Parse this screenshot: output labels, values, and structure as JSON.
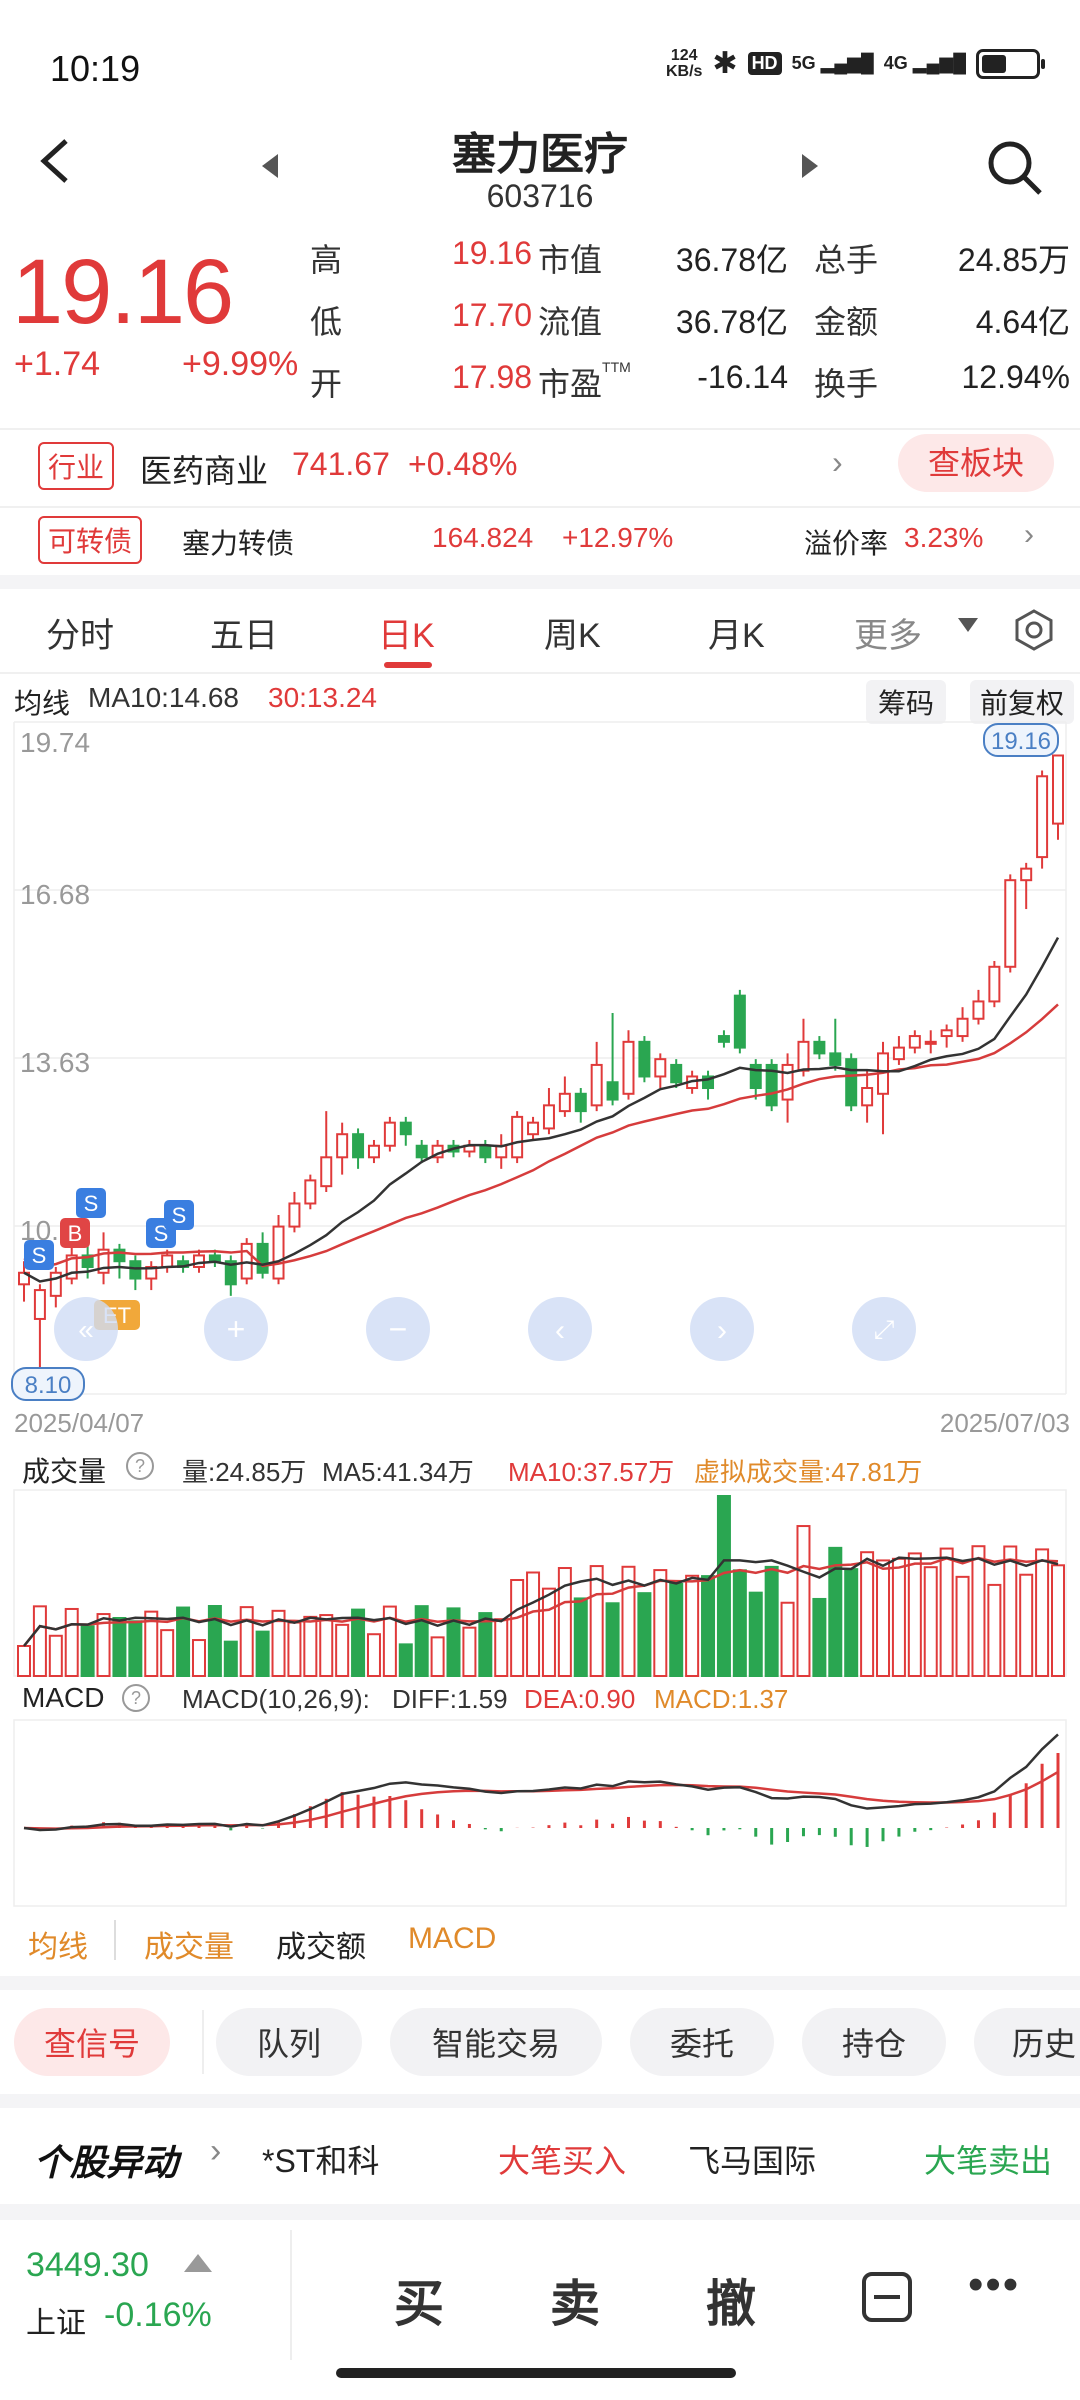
{
  "status": {
    "time": "10:19",
    "net_speed": "124\nKB/s",
    "hd": "HD",
    "sig1": "5G",
    "sig2": "4G"
  },
  "header": {
    "stock_name": "塞力医疗",
    "stock_code": "603716"
  },
  "quote": {
    "price": "19.16",
    "change": "+1.74",
    "change_pct": "+9.99%",
    "rows": [
      {
        "l1": "高",
        "v1": "19.16",
        "l2": "市值",
        "v2": "36.78亿",
        "l3": "总手",
        "v3": "24.85万"
      },
      {
        "l1": "低",
        "v1": "17.70",
        "l2": "流值",
        "v2": "36.78亿",
        "l3": "金额",
        "v3": "4.64亿"
      },
      {
        "l1": "开",
        "v1": "17.98",
        "l2": "市盈",
        "l2sup": "TTM",
        "v2": "-16.14",
        "l3": "换手",
        "v3": "12.94%"
      }
    ]
  },
  "industry": {
    "tag": "行业",
    "name": "医药商业",
    "value": "741.67",
    "change": "+0.48%",
    "button": "查板块"
  },
  "bond": {
    "tag": "可转债",
    "name": "塞力转债",
    "value": "164.824",
    "change": "+12.97%",
    "premium_label": "溢价率",
    "premium": "3.23%"
  },
  "tabs": [
    "分时",
    "五日",
    "日K",
    "周K",
    "月K",
    "更多"
  ],
  "kline": {
    "ma_label": "均线",
    "ma10": "MA10:14.68",
    "ma30": "30:13.24",
    "chips_btn": "筹码",
    "fq_btn": "前复权",
    "y_top": "19.74",
    "y_mid1": "16.68",
    "y_mid2": "13.63",
    "y_low": "10.58",
    "max_badge": "19.16",
    "min_badge": "8.10",
    "date_start": "2025/04/07",
    "date_end": "2025/07/03",
    "signals": [
      "S",
      "B",
      "S",
      "S",
      "S"
    ],
    "et": "ET"
  },
  "volume": {
    "label": "成交量",
    "vol": "量:24.85万",
    "ma5": "MA5:41.34万",
    "ma10": "MA10:37.57万",
    "virtual": "虚拟成交量:47.81万"
  },
  "macd": {
    "label": "MACD",
    "params": "MACD(10,26,9):",
    "diff": "DIFF:1.59",
    "dea": "DEA:0.90",
    "macd": "MACD:1.37"
  },
  "indicator_tabs": [
    "均线",
    "成交量",
    "成交额",
    "MACD"
  ],
  "action_chips": [
    "查信号",
    "队列",
    "智能交易",
    "委托",
    "持仓",
    "历史"
  ],
  "ticker": {
    "title": "个股异动",
    "item1": "*ST和科",
    "act1": "大笔买入",
    "item2": "飞马国际",
    "act2": "大笔卖出"
  },
  "index": {
    "value": "3449.30",
    "name": "上证",
    "change": "-0.16%"
  },
  "trade_buttons": [
    "买",
    "卖",
    "撤"
  ],
  "colors": {
    "up": "#e03a3a",
    "down": "#2aa651",
    "accent": "#e08a2a"
  }
}
